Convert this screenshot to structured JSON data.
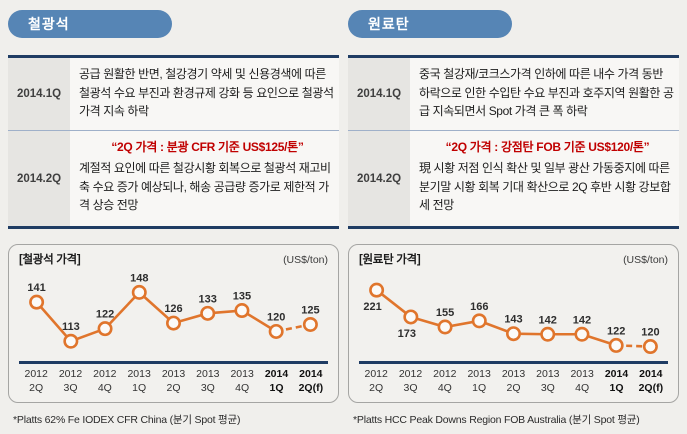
{
  "colors": {
    "badge_blue": "#5685b5",
    "navy": "#1f3c63",
    "headline_red": "#c00000",
    "line_orange": "#e0752c",
    "page_bg": "#f0efec"
  },
  "panels": [
    {
      "badge": "철광석",
      "rows": [
        {
          "period": "2014.1Q",
          "body": "공급 원활한 반면, 철강경기 약세 및 신용경색에 따른 철광석 수요 부진과 환경규제 강화 등 요인으로 철광석 가격 지속 하락"
        },
        {
          "period": "2014.2Q",
          "headline": "“2Q 가격 : 분광 CFR 기준 US$125/톤”",
          "body": "계절적 요인에 따른 철강시황 회복으로 철광석 재고비축 수요 증가 예상되나, 해송 공급량 증가로 제한적 가격 상승 전망"
        }
      ]
    },
    {
      "badge": "원료탄",
      "rows": [
        {
          "period": "2014.1Q",
          "body": "중국 철강재/코크스가격 인하에 따른 내수 가격 동반 하락으로 인한 수입탄 수요 부진과 호주지역 원활한 공급 지속되면서 Spot 가격 큰 폭 하락"
        },
        {
          "period": "2014.2Q",
          "headline": "“2Q 가격 : 강점탄 FOB 기준 US$120/톤”",
          "body": "現 시황 저점 인식 확산 및 일부 광산 가동중지에 따른 분기말 시황 회복 기대 확산으로 2Q 후반 시황 강보합세 전망"
        }
      ]
    }
  ],
  "chart_data": [
    {
      "type": "line",
      "title": "[철광석 가격]",
      "unit_label": "(US$/ton)",
      "categories": [
        "2012 2Q",
        "2012 3Q",
        "2012 4Q",
        "2013 1Q",
        "2013 2Q",
        "2013 3Q",
        "2013 4Q",
        "2014 1Q",
        "2014 2Q(f)"
      ],
      "values": [
        141,
        113,
        122,
        148,
        126,
        133,
        135,
        120,
        125
      ],
      "ylim": [
        106,
        154
      ],
      "line_color": "#e0752c",
      "forecast_last_segment": true,
      "bold_categories": [
        7,
        8
      ],
      "labels_below": [],
      "legend": "none",
      "grid": false,
      "footnote": "*Platts 62% Fe IODEX CFR China (분기 Spot 평균)"
    },
    {
      "type": "line",
      "title": "[원료탄 가격]",
      "unit_label": "(US$/ton)",
      "categories": [
        "2012 2Q",
        "2012 3Q",
        "2012 4Q",
        "2013 1Q",
        "2013 2Q",
        "2013 3Q",
        "2013 4Q",
        "2014 1Q",
        "2014 2Q(f)"
      ],
      "values": [
        221,
        173,
        155,
        166,
        143,
        142,
        142,
        122,
        120
      ],
      "ylim": [
        112,
        232
      ],
      "line_color": "#e0752c",
      "forecast_last_segment": true,
      "bold_categories": [
        7,
        8
      ],
      "labels_below": [
        0,
        1
      ],
      "legend": "none",
      "grid": false,
      "footnote": "*Platts HCC Peak Downs Region FOB Australia (분기 Spot 평균)"
    }
  ]
}
